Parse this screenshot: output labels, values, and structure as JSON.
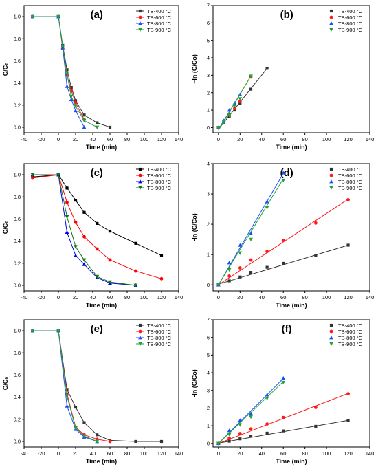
{
  "chart_data": [
    {
      "panel": "(a)",
      "type": "line",
      "xlabel": "Time (min)",
      "ylabel": "C/C₀",
      "xlim": [
        -40,
        140
      ],
      "ylim": [
        -0.05,
        1.1
      ],
      "xticks": [
        -40,
        -20,
        0,
        20,
        40,
        60,
        80,
        100,
        120,
        140
      ],
      "yticks": [
        0.0,
        0.2,
        0.4,
        0.6,
        0.8,
        1.0
      ],
      "legend": "top-right",
      "series": [
        {
          "name": "TB-400 °C",
          "color": "#333333",
          "marker": "square",
          "x": [
            -30,
            0,
            5,
            10,
            15,
            20,
            30,
            45,
            60
          ],
          "y": [
            1.0,
            1.0,
            0.74,
            0.52,
            0.36,
            0.24,
            0.11,
            0.04,
            0.0
          ]
        },
        {
          "name": "TB-600 °C",
          "color": "#ff1a1a",
          "marker": "circle",
          "x": [
            -30,
            0,
            5,
            10,
            15,
            20,
            30
          ],
          "y": [
            1.0,
            1.0,
            0.71,
            0.47,
            0.33,
            0.22,
            0.07
          ]
        },
        {
          "name": "TB-800 °C",
          "color": "#1a4dff",
          "marker": "triangle-up",
          "x": [
            -30,
            0,
            5,
            10,
            15,
            20,
            30
          ],
          "y": [
            1.0,
            1.0,
            0.72,
            0.37,
            0.25,
            0.15,
            0.0
          ]
        },
        {
          "name": "TB-900 °C",
          "color": "#22a33a",
          "marker": "triangle-down",
          "x": [
            -30,
            0,
            5,
            10,
            15,
            20,
            30,
            45
          ],
          "y": [
            1.0,
            1.0,
            0.73,
            0.48,
            0.28,
            0.19,
            0.06,
            0.0
          ]
        }
      ]
    },
    {
      "panel": "(b)",
      "type": "scatter",
      "xlabel": "Time (min)",
      "ylabel": "−ln (C/Co)",
      "xlim": [
        -5,
        140
      ],
      "ylim": [
        -0.3,
        7
      ],
      "xticks": [
        0,
        20,
        40,
        60,
        80,
        100,
        120,
        140
      ],
      "yticks": [
        0,
        1,
        2,
        3,
        4,
        5,
        6,
        7
      ],
      "legend": "top-right",
      "series": [
        {
          "name": "TB-400 °C",
          "color": "#333333",
          "marker": "square",
          "x": [
            0,
            5,
            10,
            15,
            20,
            30,
            45
          ],
          "y": [
            0.0,
            0.3,
            0.65,
            1.0,
            1.4,
            2.2,
            3.4
          ],
          "fit": [
            [
              0,
              -0.1
            ],
            [
              45,
              3.4
            ]
          ]
        },
        {
          "name": "TB-600 °C",
          "color": "#ff1a1a",
          "marker": "circle",
          "x": [
            0,
            5,
            10,
            15,
            20,
            30
          ],
          "y": [
            0.0,
            0.35,
            0.75,
            1.1,
            1.5,
            2.9
          ],
          "fit": [
            [
              0,
              -0.15
            ],
            [
              30,
              2.95
            ]
          ]
        },
        {
          "name": "TB-800 °C",
          "color": "#1a4dff",
          "marker": "triangle-up",
          "x": [
            0,
            5,
            10,
            15,
            20
          ],
          "y": [
            0.0,
            0.4,
            1.0,
            1.4,
            1.9
          ],
          "fit": [
            [
              0,
              -0.1
            ],
            [
              20,
              1.9
            ]
          ]
        },
        {
          "name": "TB-900 °C",
          "color": "#22a33a",
          "marker": "triangle-down",
          "x": [
            0,
            5,
            10,
            15,
            20,
            30
          ],
          "y": [
            0.0,
            0.32,
            0.7,
            1.25,
            1.65,
            2.95
          ],
          "fit": [
            [
              0,
              -0.15
            ],
            [
              30,
              2.95
            ]
          ]
        }
      ]
    },
    {
      "panel": "(c)",
      "type": "line",
      "xlabel": "Time (min)",
      "ylabel": "C/C₀",
      "xlim": [
        -40,
        140
      ],
      "ylim": [
        -0.05,
        1.1
      ],
      "xticks": [
        -40,
        -20,
        0,
        20,
        40,
        60,
        80,
        100,
        120,
        140
      ],
      "yticks": [
        0.0,
        0.2,
        0.4,
        0.6,
        0.8,
        1.0
      ],
      "legend": "top-right",
      "series": [
        {
          "name": "TB-400 °C",
          "color": "#000000",
          "marker": "square",
          "x": [
            -30,
            0,
            10,
            20,
            30,
            45,
            60,
            90,
            120
          ],
          "y": [
            0.98,
            1.0,
            0.88,
            0.77,
            0.66,
            0.56,
            0.49,
            0.38,
            0.27
          ]
        },
        {
          "name": "TB-600 °C",
          "color": "#ff0000",
          "marker": "circle",
          "x": [
            -30,
            0,
            10,
            20,
            30,
            45,
            60,
            90,
            120
          ],
          "y": [
            0.97,
            1.0,
            0.75,
            0.57,
            0.44,
            0.33,
            0.23,
            0.13,
            0.06
          ]
        },
        {
          "name": "TB-800 °C",
          "color": "#0000ee",
          "marker": "triangle-up",
          "x": [
            -30,
            0,
            10,
            20,
            30,
            45,
            60,
            90
          ],
          "y": [
            1.0,
            1.0,
            0.48,
            0.27,
            0.19,
            0.07,
            0.02,
            0.0
          ]
        },
        {
          "name": "TB-900 °C",
          "color": "#117711",
          "marker": "triangle-down",
          "x": [
            -30,
            0,
            10,
            20,
            30,
            45,
            60,
            90
          ],
          "y": [
            1.0,
            1.0,
            0.62,
            0.35,
            0.23,
            0.08,
            0.03,
            0.0
          ]
        }
      ]
    },
    {
      "panel": "(d)",
      "type": "scatter",
      "xlabel": "Time (min)",
      "ylabel": "-ln (C/Co)",
      "xlim": [
        -5,
        140
      ],
      "ylim": [
        -0.2,
        4
      ],
      "xticks": [
        0,
        20,
        40,
        60,
        80,
        100,
        120,
        140
      ],
      "yticks": [
        0,
        1,
        2,
        3,
        4
      ],
      "legend": "top-right",
      "series": [
        {
          "name": "TB-400 °C",
          "color": "#333333",
          "marker": "square",
          "x": [
            0,
            10,
            20,
            30,
            45,
            60,
            90,
            120
          ],
          "y": [
            0.0,
            0.13,
            0.26,
            0.41,
            0.58,
            0.71,
            0.97,
            1.31
          ],
          "fit": [
            [
              0,
              0.02
            ],
            [
              120,
              1.31
            ]
          ]
        },
        {
          "name": "TB-600 °C",
          "color": "#ff1a1a",
          "marker": "circle",
          "x": [
            0,
            10,
            20,
            30,
            45,
            60,
            90,
            120
          ],
          "y": [
            0.0,
            0.29,
            0.56,
            0.82,
            1.1,
            1.47,
            2.04,
            2.81
          ],
          "fit": [
            [
              0,
              0.0
            ],
            [
              120,
              2.83
            ]
          ]
        },
        {
          "name": "TB-800 °C",
          "color": "#1a4dff",
          "marker": "triangle-up",
          "x": [
            0,
            10,
            20,
            30,
            45,
            60
          ],
          "y": [
            0.0,
            0.73,
            1.31,
            1.7,
            2.75,
            3.7
          ],
          "fit": [
            [
              0,
              0.0
            ],
            [
              60,
              3.68
            ]
          ]
        },
        {
          "name": "TB-900 °C",
          "color": "#22a33a",
          "marker": "triangle-down",
          "x": [
            0,
            10,
            20,
            30,
            45,
            60
          ],
          "y": [
            0.0,
            0.5,
            1.05,
            1.5,
            2.55,
            3.45
          ],
          "fit": [
            [
              0,
              0.0
            ],
            [
              60,
              3.5
            ]
          ]
        }
      ]
    },
    {
      "panel": "(e)",
      "type": "line",
      "xlabel": "Time (min)",
      "ylabel": "C/C₀",
      "xlim": [
        -40,
        140
      ],
      "ylim": [
        -0.05,
        1.1
      ],
      "xticks": [
        -40,
        -20,
        0,
        20,
        40,
        60,
        80,
        100,
        120,
        140
      ],
      "yticks": [
        0.0,
        0.2,
        0.4,
        0.6,
        0.8,
        1.0
      ],
      "legend": "top-right",
      "series": [
        {
          "name": "TB-400 °C",
          "color": "#333333",
          "marker": "square",
          "x": [
            -30,
            0,
            10,
            20,
            30,
            45,
            60,
            90,
            120
          ],
          "y": [
            1.0,
            1.0,
            0.47,
            0.31,
            0.17,
            0.06,
            0.01,
            0.0,
            0.0
          ]
        },
        {
          "name": "TB-600 °C",
          "color": "#ff1a1a",
          "marker": "circle",
          "x": [
            -30,
            0,
            10,
            20,
            30,
            45,
            60
          ],
          "y": [
            1.0,
            1.0,
            0.43,
            0.13,
            0.06,
            0.02,
            0.0
          ]
        },
        {
          "name": "TB-800 °C",
          "color": "#1a4dff",
          "marker": "triangle-up",
          "x": [
            -30,
            0,
            10,
            20,
            30,
            45
          ],
          "y": [
            1.0,
            1.0,
            0.32,
            0.11,
            0.04,
            0.0
          ]
        },
        {
          "name": "TB-900 °C",
          "color": "#22a33a",
          "marker": "triangle-down",
          "x": [
            -30,
            0,
            10,
            20,
            30,
            45
          ],
          "y": [
            1.0,
            1.0,
            0.41,
            0.12,
            0.05,
            0.0
          ]
        }
      ]
    },
    {
      "panel": "(f)",
      "type": "scatter",
      "xlabel": "Time (min)",
      "ylabel": "-ln (C/Co)",
      "xlim": [
        -5,
        140
      ],
      "ylim": [
        -0.2,
        7
      ],
      "xticks": [
        0,
        20,
        40,
        60,
        80,
        100,
        120,
        140
      ],
      "yticks": [
        0,
        1,
        2,
        3,
        4,
        5,
        6,
        7
      ],
      "legend": "top-right",
      "series": [
        {
          "name": "TB-400 °C",
          "color": "#333333",
          "marker": "square",
          "x": [
            0,
            10,
            20,
            30,
            45,
            60,
            90,
            120
          ],
          "y": [
            0.0,
            0.13,
            0.26,
            0.41,
            0.58,
            0.71,
            0.97,
            1.31
          ],
          "fit": [
            [
              0,
              0.02
            ],
            [
              120,
              1.31
            ]
          ]
        },
        {
          "name": "TB-600 °C",
          "color": "#ff1a1a",
          "marker": "circle",
          "x": [
            0,
            10,
            20,
            30,
            45,
            60,
            90,
            120
          ],
          "y": [
            0.0,
            0.29,
            0.56,
            0.82,
            1.1,
            1.47,
            2.04,
            2.81
          ],
          "fit": [
            [
              0,
              0.0
            ],
            [
              120,
              2.83
            ]
          ]
        },
        {
          "name": "TB-800 °C",
          "color": "#1a4dff",
          "marker": "triangle-up",
          "x": [
            0,
            10,
            20,
            30,
            45,
            60
          ],
          "y": [
            0.0,
            0.73,
            1.31,
            1.7,
            2.75,
            3.7
          ],
          "fit": [
            [
              0,
              0.0
            ],
            [
              60,
              3.68
            ]
          ]
        },
        {
          "name": "TB-900 °C",
          "color": "#22a33a",
          "marker": "triangle-down",
          "x": [
            0,
            10,
            20,
            30,
            45,
            60
          ],
          "y": [
            0.0,
            0.5,
            1.05,
            1.5,
            2.55,
            3.45
          ],
          "fit": [
            [
              0,
              0.0
            ],
            [
              60,
              3.5
            ]
          ]
        }
      ]
    }
  ]
}
